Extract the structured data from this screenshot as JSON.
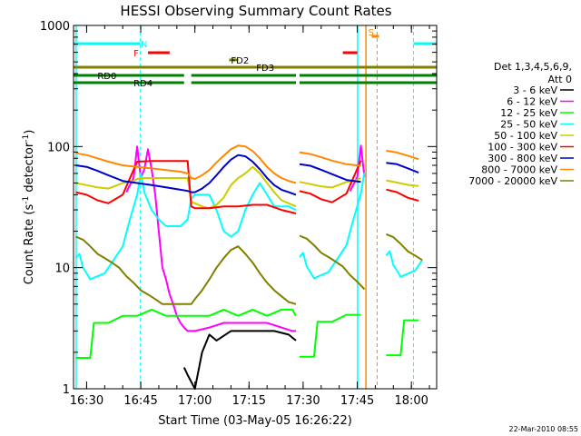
{
  "chart_data": {
    "type": "line",
    "title": "HESSI Observing Summary Count Rates",
    "xlabel": "Start Time (03-May-05 16:26:22)",
    "ylabel": {
      "main": "Count Rate (s",
      "sup1": "-1",
      "mid": " detector",
      "sup2": "-1",
      "end": ")"
    },
    "x_tick_labels": [
      "16:30",
      "16:45",
      "17:00",
      "17:15",
      "17:30",
      "17:45",
      "18:00"
    ],
    "x_tick_minutes": [
      30,
      45,
      60,
      75,
      90,
      105,
      120
    ],
    "x_range_minutes": [
      26.37,
      127
    ],
    "y_scale": "log",
    "y_range": [
      1,
      1000
    ],
    "y_tick_labels": [
      "1",
      "10",
      "100",
      "1000"
    ],
    "legend": {
      "title": [
        "Det 1,3,4,5,6,9,",
        "Att 0"
      ],
      "placement": "right",
      "entries": [
        {
          "label": "3 - 6 keV",
          "color": "#000000"
        },
        {
          "label": "6 - 12 keV",
          "color": "#ff00ff"
        },
        {
          "label": "12 - 25 keV",
          "color": "#00ff00"
        },
        {
          "label": "25 - 50 keV",
          "color": "#00ffff"
        },
        {
          "label": "50 - 100 keV",
          "color": "#cccc00"
        },
        {
          "label": "100 - 300 keV",
          "color": "#ff0000"
        },
        {
          "label": "300 - 800 keV",
          "color": "#0000cc"
        },
        {
          "label": "800 - 7000 keV",
          "color": "#ff8800"
        },
        {
          "label": "7000 - 20000 keV",
          "color": "#808000"
        }
      ]
    },
    "series": [
      {
        "name": "3 - 6 keV",
        "color": "#000000",
        "x": [
          57,
          58,
          60,
          62,
          64,
          66,
          70,
          74,
          78,
          82,
          86,
          88
        ],
        "y": [
          1.5,
          1.3,
          1.0,
          2.0,
          2.8,
          2.5,
          3.0,
          3.0,
          3.0,
          3.0,
          2.8,
          2.5
        ]
      },
      {
        "name": "6 - 12 keV",
        "color": "#ff00ff",
        "x": [
          41,
          43,
          44,
          45,
          46,
          47,
          48,
          49,
          50,
          51,
          52,
          53,
          54,
          55,
          56,
          57,
          58,
          59,
          60,
          64,
          68,
          72,
          76,
          80,
          84,
          87,
          88
        ],
        "y": [
          42,
          55,
          100,
          55,
          65,
          95,
          65,
          40,
          20,
          10,
          8,
          6,
          5,
          4,
          3.5,
          3.2,
          3.0,
          3.0,
          3.0,
          3.2,
          3.5,
          3.5,
          3.5,
          3.5,
          3.2,
          3.0,
          3.0
        ]
      },
      {
        "name": "12 - 25 keV",
        "color": "#00ff00",
        "x": [
          27,
          31,
          32,
          36,
          40,
          44,
          48,
          52,
          56,
          60,
          64,
          68,
          72,
          76,
          80,
          84,
          87,
          88
        ],
        "y": [
          1.8,
          1.8,
          3.5,
          3.5,
          4.0,
          4.0,
          4.5,
          4.0,
          4.0,
          4.0,
          4.0,
          4.5,
          4.0,
          4.5,
          4.0,
          4.5,
          4.5,
          4.0
        ]
      },
      {
        "name": "25 - 50 keV",
        "color": "#00ffff",
        "x": [
          27,
          28,
          29,
          30,
          31,
          33,
          35,
          37,
          40,
          42,
          44,
          45,
          46,
          48,
          50,
          52,
          54,
          56,
          58,
          59,
          60,
          62,
          64,
          66,
          68,
          70,
          72,
          74,
          76,
          78,
          80,
          82,
          84,
          86,
          88
        ],
        "y": [
          12,
          13,
          10,
          9,
          8,
          8.5,
          9,
          11,
          15,
          25,
          40,
          60,
          42,
          30,
          25,
          22,
          22,
          22,
          25,
          37,
          40,
          40,
          40,
          30,
          20,
          18,
          20,
          30,
          40,
          50,
          40,
          32,
          32,
          32,
          30
        ]
      },
      {
        "name": "50 - 100 keV",
        "color": "#cccc00",
        "x": [
          27,
          30,
          33,
          36,
          40,
          43,
          44,
          46,
          48,
          50,
          52,
          54,
          56,
          58,
          59,
          60,
          62,
          64,
          66,
          68,
          70,
          72,
          74,
          76,
          78,
          80,
          82,
          84,
          86,
          88
        ],
        "y": [
          50,
          48,
          46,
          45,
          50,
          52,
          54,
          55,
          55,
          55,
          55,
          55,
          55,
          55,
          35,
          34,
          32,
          31,
          33,
          38,
          48,
          55,
          60,
          68,
          60,
          50,
          42,
          36,
          34,
          32
        ]
      },
      {
        "name": "100 - 300 keV",
        "color": "#ff0000",
        "x": [
          27,
          30,
          33,
          36,
          40,
          44,
          48,
          52,
          56,
          58,
          59,
          60,
          64,
          68,
          72,
          76,
          80,
          84,
          88
        ],
        "y": [
          42,
          40,
          36,
          34,
          40,
          75,
          76,
          76,
          76,
          76,
          32,
          31,
          31,
          32,
          32,
          33,
          33,
          30,
          28
        ]
      },
      {
        "name": "300 - 800 keV",
        "color": "#0000cc",
        "x": [
          27,
          30,
          33,
          36,
          40,
          44,
          48,
          52,
          56,
          58,
          59,
          60,
          62,
          64,
          66,
          68,
          70,
          72,
          74,
          76,
          78,
          80,
          82,
          84,
          86,
          88
        ],
        "y": [
          70,
          68,
          63,
          58,
          52,
          50,
          48,
          46,
          44,
          43,
          42,
          42,
          45,
          50,
          58,
          68,
          78,
          85,
          83,
          75,
          65,
          55,
          48,
          44,
          42,
          40
        ]
      },
      {
        "name": "800 - 7000 keV",
        "color": "#ff8800",
        "x": [
          27,
          30,
          33,
          36,
          40,
          44,
          48,
          52,
          56,
          58,
          59,
          60,
          62,
          64,
          66,
          68,
          70,
          72,
          74,
          76,
          78,
          80,
          82,
          84,
          86,
          88
        ],
        "y": [
          88,
          85,
          80,
          75,
          70,
          68,
          66,
          64,
          62,
          60,
          55,
          54,
          58,
          64,
          74,
          84,
          95,
          102,
          100,
          92,
          80,
          68,
          60,
          55,
          52,
          50
        ]
      },
      {
        "name": "7000 - 20000 keV",
        "color": "#808000",
        "x": [
          27,
          29,
          31,
          33,
          35,
          37,
          39,
          41,
          43,
          45,
          47,
          49,
          51,
          53,
          55,
          57,
          58,
          59,
          60,
          62,
          64,
          66,
          68,
          70,
          72,
          74,
          76,
          78,
          80,
          82,
          84,
          86,
          88
        ],
        "y": [
          18,
          17,
          15,
          13,
          12,
          11,
          10,
          8.5,
          7.5,
          6.5,
          6,
          5.5,
          5,
          5,
          5,
          5,
          5,
          5,
          5.5,
          6.5,
          8,
          10,
          12,
          14,
          15,
          13,
          11,
          9,
          7.5,
          6.5,
          5.8,
          5.2,
          5
        ]
      }
    ],
    "flag_bars": [
      {
        "label": "N",
        "color": "#00ffff",
        "label_minute": 45
      },
      {
        "label": "F",
        "color": "#ff0000",
        "label_minute": 43
      },
      {
        "label": "S",
        "color": "#ff8800",
        "label_minute": 108
      },
      {
        "label": "FD2",
        "color": "#808000",
        "label_minute": 70
      },
      {
        "label": "FD3",
        "color": "#808000",
        "label_minute": 77
      },
      {
        "label": "RD0",
        "color": "#008000",
        "label_minute": 33
      },
      {
        "label": "RD4",
        "color": "#008000",
        "label_minute": 43
      }
    ]
  },
  "timestamp": "22-Mar-2010 08:55"
}
